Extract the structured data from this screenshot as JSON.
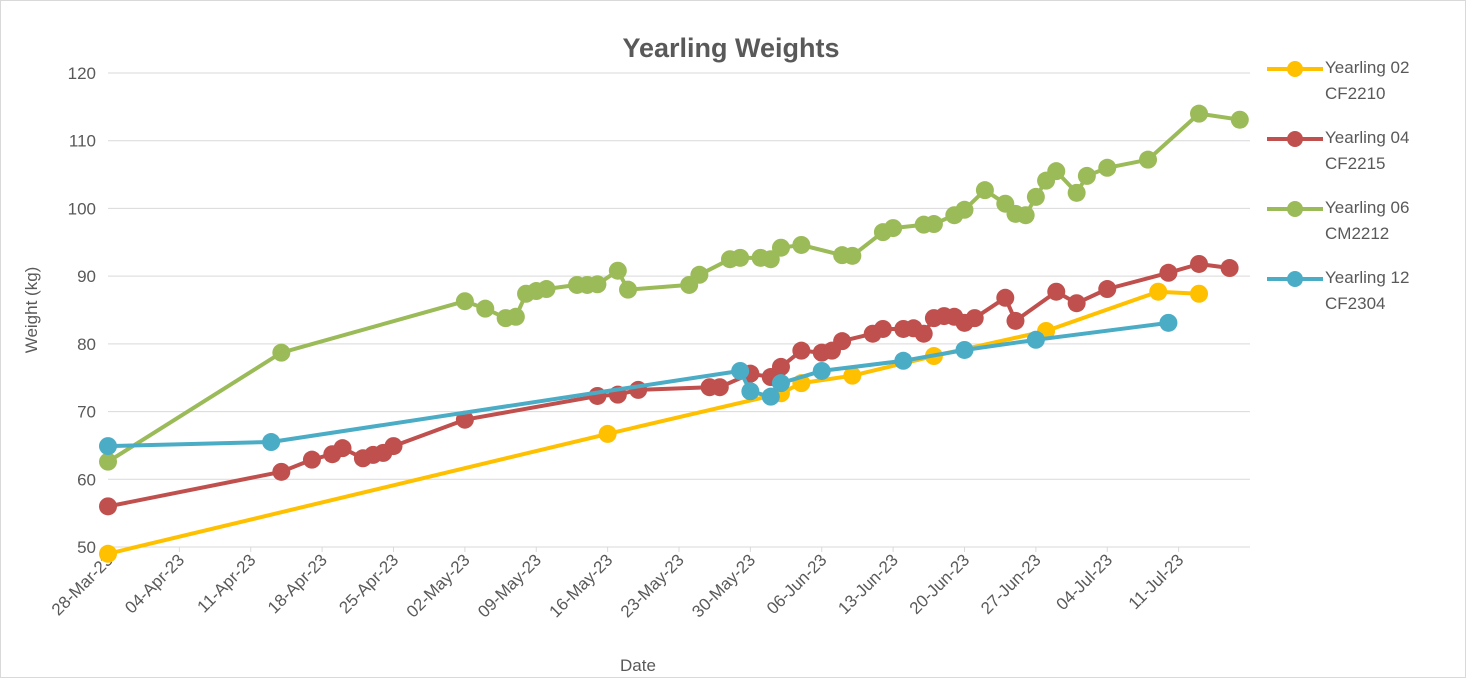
{
  "chart_data": {
    "type": "line",
    "title": "Yearling Weights",
    "xlabel": "Date",
    "ylabel": "Weight (kg)",
    "xlim": [
      "2023-03-28",
      "2023-07-18"
    ],
    "xticks": [
      {
        "value": "2023-03-28",
        "label": "28-Mar-23"
      },
      {
        "value": "2023-04-04",
        "label": "04-Apr-23"
      },
      {
        "value": "2023-04-11",
        "label": "11-Apr-23"
      },
      {
        "value": "2023-04-18",
        "label": "18-Apr-23"
      },
      {
        "value": "2023-04-25",
        "label": "25-Apr-23"
      },
      {
        "value": "2023-05-02",
        "label": "02-May-23"
      },
      {
        "value": "2023-05-09",
        "label": "09-May-23"
      },
      {
        "value": "2023-05-16",
        "label": "16-May-23"
      },
      {
        "value": "2023-05-23",
        "label": "23-May-23"
      },
      {
        "value": "2023-05-30",
        "label": "30-May-23"
      },
      {
        "value": "2023-06-06",
        "label": "06-Jun-23"
      },
      {
        "value": "2023-06-13",
        "label": "13-Jun-23"
      },
      {
        "value": "2023-06-20",
        "label": "20-Jun-23"
      },
      {
        "value": "2023-06-27",
        "label": "27-Jun-23"
      },
      {
        "value": "2023-07-04",
        "label": "04-Jul-23"
      },
      {
        "value": "2023-07-11",
        "label": "11-Jul-23"
      }
    ],
    "ylim": [
      50,
      120
    ],
    "yticks": [
      50,
      60,
      70,
      80,
      90,
      100,
      110,
      120
    ],
    "grid": true,
    "legend": "right",
    "series": [
      {
        "name": "Yearling 02 CF2210",
        "color": "#ffc000",
        "x": [
          "2023-03-28",
          "2023-05-16",
          "2023-06-02",
          "2023-06-04",
          "2023-06-09",
          "2023-06-17",
          "2023-06-28",
          "2023-07-09",
          "2023-07-13"
        ],
        "values": [
          49,
          66.7,
          72.7,
          74.2,
          75.3,
          78.2,
          81.9,
          87.7,
          87.4
        ]
      },
      {
        "name": "Yearling 04 CF2215",
        "color": "#c0504d",
        "x": [
          "2023-03-28",
          "2023-04-14",
          "2023-04-17",
          "2023-04-19",
          "2023-04-20",
          "2023-04-22",
          "2023-04-23",
          "2023-04-24",
          "2023-04-25",
          "2023-05-02",
          "2023-05-15",
          "2023-05-17",
          "2023-05-19",
          "2023-05-26",
          "2023-05-27",
          "2023-05-30",
          "2023-06-01",
          "2023-06-02",
          "2023-06-04",
          "2023-06-06",
          "2023-06-07",
          "2023-06-08",
          "2023-06-11",
          "2023-06-12",
          "2023-06-14",
          "2023-06-15",
          "2023-06-16",
          "2023-06-17",
          "2023-06-18",
          "2023-06-19",
          "2023-06-20",
          "2023-06-21",
          "2023-06-24",
          "2023-06-25",
          "2023-06-29",
          "2023-07-01",
          "2023-07-04",
          "2023-07-10",
          "2023-07-13",
          "2023-07-16"
        ],
        "values": [
          56.0,
          61.1,
          62.9,
          63.7,
          64.6,
          63.1,
          63.6,
          63.9,
          64.9,
          68.8,
          72.3,
          72.5,
          73.2,
          73.6,
          73.6,
          75.6,
          75.1,
          76.6,
          79.0,
          78.7,
          79.0,
          80.4,
          81.5,
          82.2,
          82.2,
          82.3,
          81.5,
          83.8,
          84.1,
          84.0,
          83.1,
          83.8,
          86.8,
          83.4,
          87.7,
          86.0,
          88.1,
          90.5,
          91.8,
          91.2
        ]
      },
      {
        "name": "Yearling 06 CM2212",
        "color": "#9bbb59",
        "x": [
          "2023-03-28",
          "2023-04-14",
          "2023-05-02",
          "2023-05-04",
          "2023-05-06",
          "2023-05-07",
          "2023-05-08",
          "2023-05-09",
          "2023-05-10",
          "2023-05-13",
          "2023-05-14",
          "2023-05-15",
          "2023-05-17",
          "2023-05-18",
          "2023-05-24",
          "2023-05-25",
          "2023-05-28",
          "2023-05-29",
          "2023-05-31",
          "2023-06-01",
          "2023-06-02",
          "2023-06-04",
          "2023-06-08",
          "2023-06-09",
          "2023-06-12",
          "2023-06-13",
          "2023-06-16",
          "2023-06-17",
          "2023-06-19",
          "2023-06-20",
          "2023-06-22",
          "2023-06-24",
          "2023-06-25",
          "2023-06-26",
          "2023-06-27",
          "2023-06-28",
          "2023-06-29",
          "2023-07-01",
          "2023-07-02",
          "2023-07-04",
          "2023-07-08",
          "2023-07-13",
          "2023-07-17"
        ],
        "values": [
          62.6,
          78.7,
          86.3,
          85.2,
          83.8,
          84.0,
          87.4,
          87.8,
          88.1,
          88.7,
          88.7,
          88.8,
          90.8,
          88.0,
          88.7,
          90.2,
          92.5,
          92.7,
          92.7,
          92.5,
          94.2,
          94.6,
          93.1,
          93.0,
          96.5,
          97.1,
          97.6,
          97.7,
          99.0,
          99.8,
          102.7,
          100.7,
          99.2,
          99.0,
          101.7,
          104.1,
          105.5,
          102.3,
          104.8,
          106.0,
          107.2,
          114.0,
          113.1
        ]
      },
      {
        "name": "Yearling 12 CF2304",
        "color": "#4bacc6",
        "x": [
          "2023-03-28",
          "2023-04-13",
          "2023-05-29",
          "2023-05-30",
          "2023-06-01",
          "2023-06-02",
          "2023-06-06",
          "2023-06-14",
          "2023-06-20",
          "2023-06-27",
          "2023-07-10"
        ],
        "values": [
          64.9,
          65.5,
          76.0,
          73.0,
          72.2,
          74.2,
          76.0,
          77.5,
          79.1,
          80.6,
          83.1
        ]
      }
    ]
  }
}
